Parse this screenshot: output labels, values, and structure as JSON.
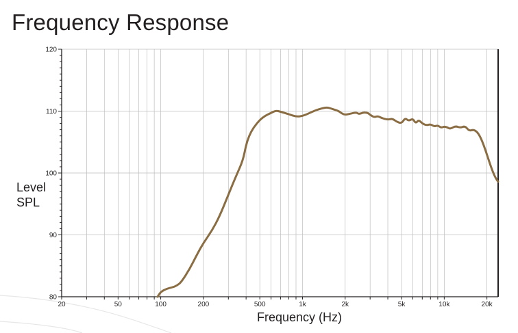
{
  "title": "Frequency Response",
  "chart_data": {
    "type": "line",
    "title": "Frequency Response",
    "xlabel": "Frequency (Hz)",
    "ylabel": "Level SPL",
    "xscale": "log",
    "xlim": [
      20,
      24000
    ],
    "ylim": [
      80,
      120
    ],
    "grid": true,
    "line_color": "#8b6d43",
    "x_ticks": [
      20,
      50,
      100,
      200,
      500,
      1000,
      2000,
      5000,
      10000,
      20000
    ],
    "x_tick_labels": [
      "20",
      "50",
      "100",
      "200",
      "500",
      "1k",
      "2k",
      "5k",
      "10k",
      "20k"
    ],
    "y_ticks": [
      80,
      90,
      100,
      110,
      120
    ],
    "y_tick_labels": [
      "80",
      "90",
      "100",
      "110",
      "120"
    ],
    "series": [
      {
        "x": [
          95,
          100,
          110,
          120,
          130,
          140,
          160,
          180,
          200,
          230,
          260,
          300,
          340,
          380,
          400,
          420,
          450,
          500,
          550,
          600,
          650,
          700,
          800,
          900,
          1000,
          1100,
          1200,
          1300,
          1400,
          1500,
          1600,
          1700,
          1800,
          1900,
          2000,
          2200,
          2400,
          2500,
          2700,
          2900,
          3000,
          3200,
          3400,
          3600,
          4000,
          4300,
          4600,
          5000,
          5300,
          5600,
          6000,
          6300,
          6600,
          7000,
          7500,
          8000,
          8500,
          9000,
          9500,
          10000,
          10500,
          11000,
          12000,
          13000,
          14000,
          15000,
          16000,
          17000,
          18000,
          19000,
          20000,
          21000,
          22000,
          23000,
          24000
        ],
        "values": [
          80,
          80.8,
          81.3,
          81.5,
          81.8,
          82.4,
          84.5,
          86.8,
          88.7,
          90.7,
          93.0,
          96.5,
          99.5,
          102.0,
          104.5,
          106.0,
          107.3,
          108.6,
          109.3,
          109.7,
          110.1,
          109.9,
          109.5,
          109.1,
          109.2,
          109.6,
          110.0,
          110.3,
          110.5,
          110.6,
          110.4,
          110.2,
          110.0,
          109.6,
          109.4,
          109.6,
          109.8,
          109.5,
          109.8,
          109.7,
          109.4,
          109.0,
          109.2,
          108.9,
          108.6,
          108.8,
          108.3,
          108.0,
          108.9,
          108.4,
          108.8,
          108.0,
          108.6,
          108.0,
          107.7,
          107.9,
          107.5,
          107.7,
          107.3,
          107.5,
          107.4,
          107.1,
          107.6,
          107.3,
          107.6,
          106.8,
          107.0,
          106.7,
          105.8,
          104.5,
          103.0,
          101.5,
          100.2,
          99.2,
          98.6
        ]
      }
    ]
  }
}
